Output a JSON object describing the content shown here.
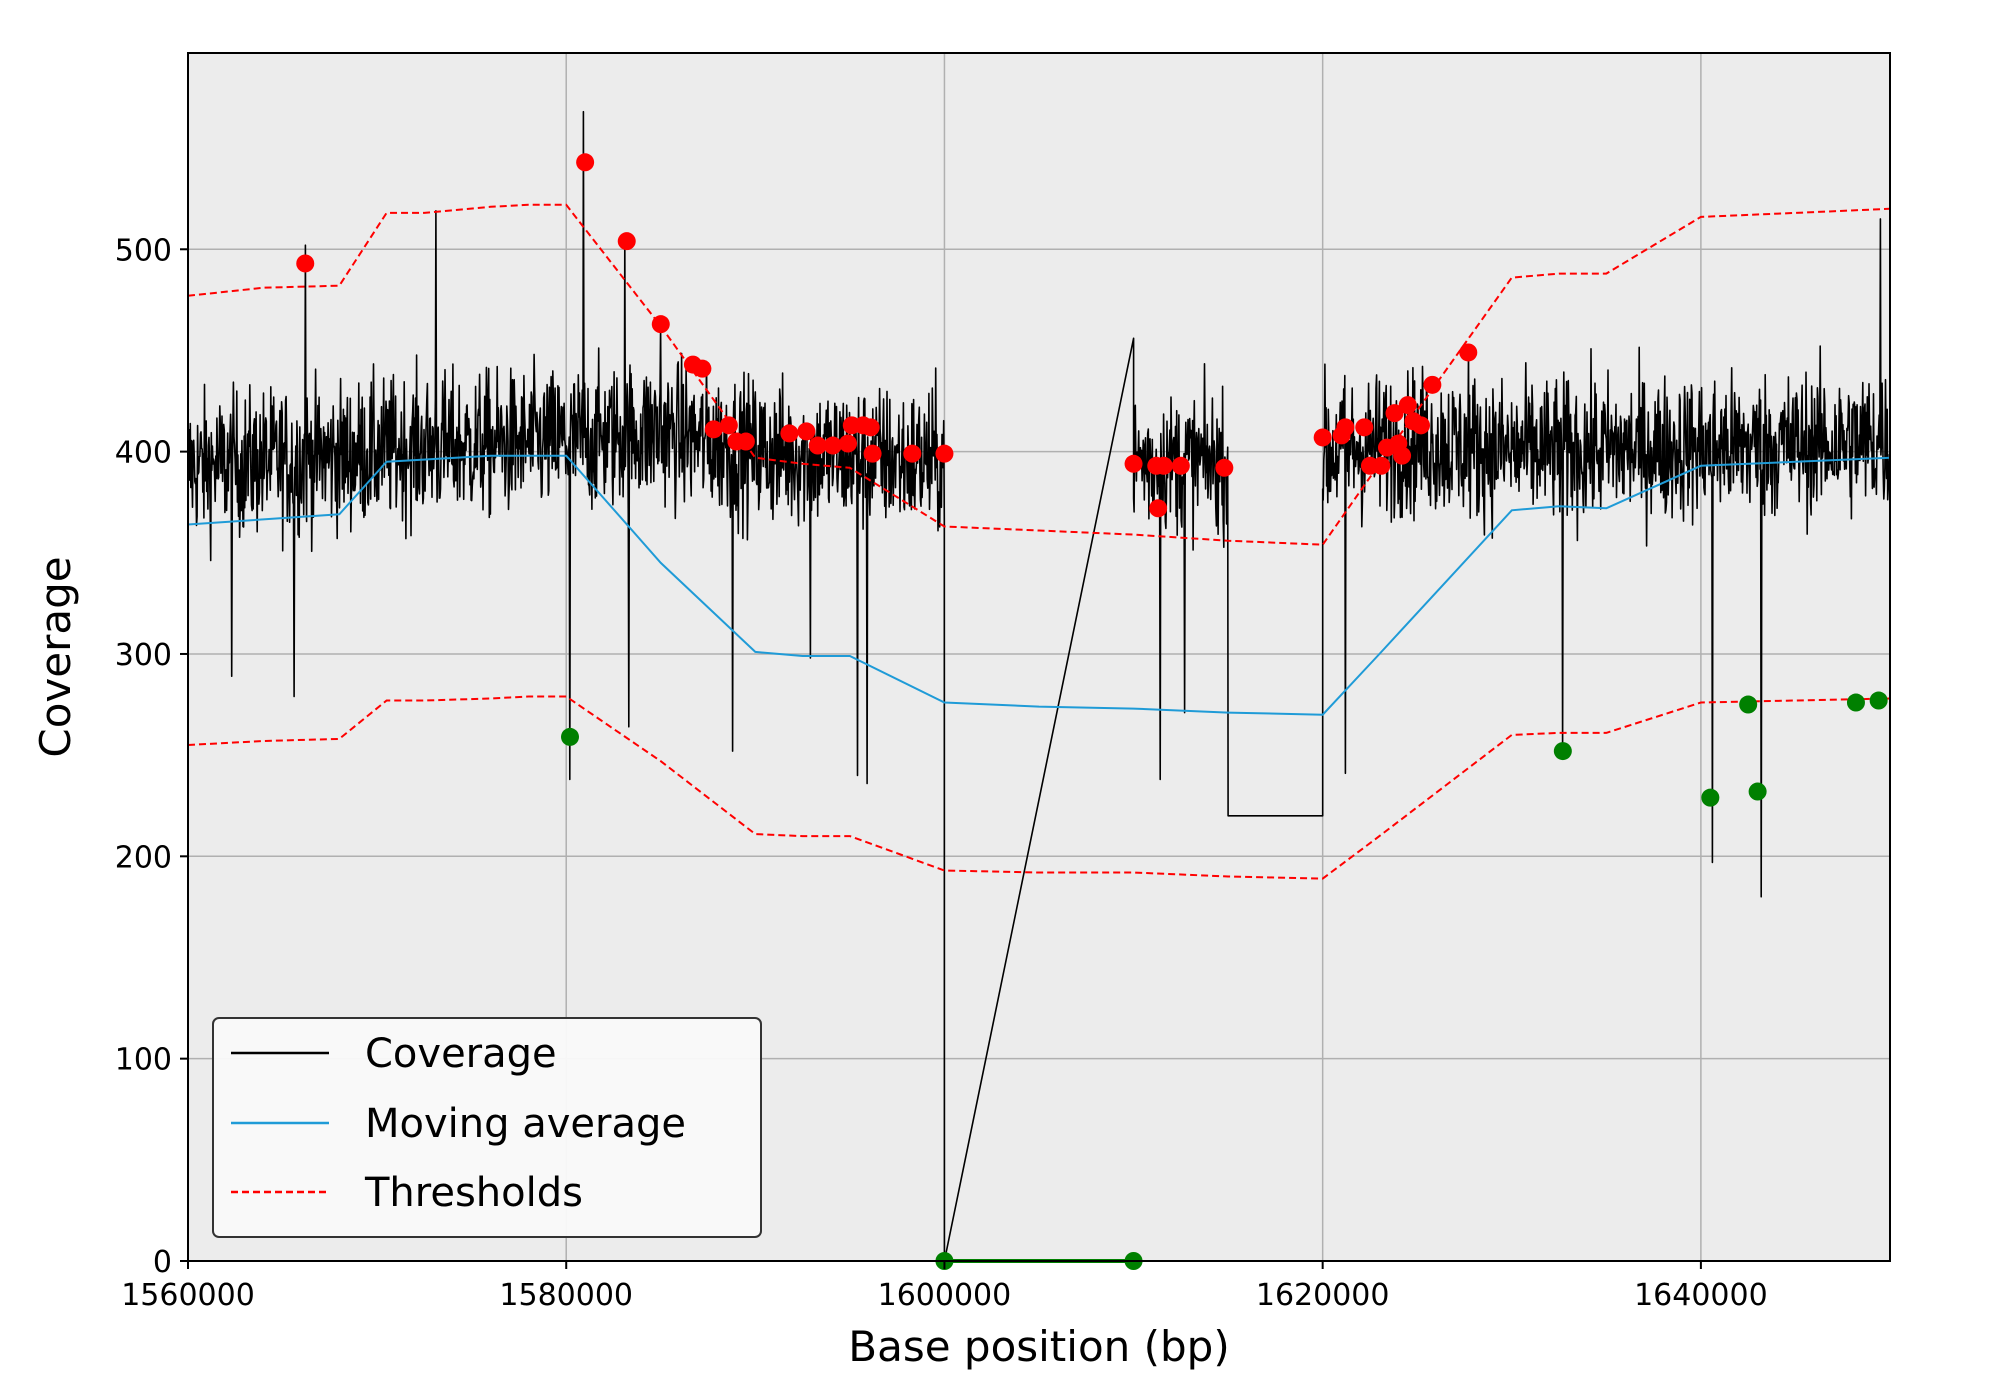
{
  "chart_data": {
    "type": "line",
    "title": "",
    "xlabel": "Base position (bp)",
    "ylabel": "Coverage",
    "xlim": [
      1560000,
      1650000
    ],
    "ylim": [
      0,
      597
    ],
    "x_ticks": [
      1560000,
      1580000,
      1600000,
      1620000,
      1640000
    ],
    "x_tick_labels": [
      "1560000",
      "1580000",
      "1600000",
      "1620000",
      "1640000"
    ],
    "y_ticks": [
      0,
      100,
      200,
      300,
      400,
      500
    ],
    "y_tick_labels": [
      "0",
      "100",
      "200",
      "300",
      "400",
      "500"
    ],
    "grid": true,
    "legend": {
      "position": "lower-left",
      "entries": [
        {
          "label": "Coverage",
          "color": "#000000",
          "style": "solid"
        },
        {
          "label": "Moving average",
          "color": "#1f9bd7",
          "style": "solid"
        },
        {
          "label": "Thresholds",
          "color": "#ff0000",
          "style": "dashed"
        }
      ]
    },
    "colors": {
      "background": "#ececec",
      "coverage": "#000000",
      "moving_average": "#1f9bd7",
      "threshold": "#ff0000",
      "high_outlier": "#ff0000",
      "low_outlier": "#008000"
    },
    "series": [
      {
        "name": "Moving average",
        "x": [
          1560000,
          1568000,
          1570500,
          1576000,
          1580000,
          1585000,
          1590000,
          1592500,
          1595000,
          1600000,
          1605000,
          1610000,
          1615000,
          1620000,
          1623000,
          1630000,
          1632500,
          1635000,
          1640000,
          1650000
        ],
        "y": [
          364,
          369,
          395,
          398,
          398,
          345,
          301,
          299,
          299,
          276,
          274,
          273,
          271,
          270,
          300,
          371,
          373,
          372,
          393,
          397
        ]
      },
      {
        "name": "Thresholds",
        "x": [
          1560000,
          1564000,
          1568000,
          1570500,
          1572500,
          1576000,
          1578000,
          1580000,
          1585000,
          1590000,
          1592500,
          1595000,
          1600000,
          1605000,
          1610000,
          1615000,
          1620000,
          1623000,
          1630000,
          1632500,
          1635000,
          1640000,
          1645000,
          1650000
        ],
        "y": [
          477,
          481,
          482,
          518,
          518,
          521,
          522,
          522,
          462,
          397,
          394,
          392,
          363,
          361,
          359,
          356,
          354,
          394,
          486,
          488,
          488,
          516,
          518,
          520
        ]
      },
      {
        "name": "Thresholds",
        "x": [
          1560000,
          1564000,
          1568000,
          1570500,
          1572500,
          1576000,
          1578000,
          1580000,
          1585000,
          1590000,
          1592500,
          1595000,
          1600000,
          1605000,
          1610000,
          1615000,
          1620000,
          1623000,
          1630000,
          1632500,
          1635000,
          1640000,
          1645000,
          1650000
        ],
        "y": [
          255,
          257,
          258,
          277,
          277,
          278,
          279,
          279,
          247,
          211,
          210,
          210,
          193,
          192,
          192,
          190,
          189,
          210,
          260,
          261,
          261,
          276,
          277,
          278
        ]
      }
    ],
    "coverage_segments": [
      {
        "x_range": [
          1560000,
          1600000
        ],
        "baseline": [
          [
            1560000,
            392
          ],
          [
            1568000,
            398
          ],
          [
            1572000,
            402
          ],
          [
            1580000,
            405
          ],
          [
            1585000,
            410
          ],
          [
            1590000,
            400
          ],
          [
            1600000,
            395
          ]
        ],
        "spread": 30
      },
      {
        "x_range": [
          1600000,
          1610000
        ],
        "constant": 0
      },
      {
        "x_range": [
          1610000,
          1615000
        ],
        "baseline": [
          [
            1610000,
            395
          ],
          [
            1615000,
            395
          ]
        ],
        "spread": 28
      },
      {
        "x_range": [
          1615000,
          1620000
        ],
        "constant": 220
      },
      {
        "x_range": [
          1620000,
          1650000
        ],
        "baseline": [
          [
            1620000,
            400
          ],
          [
            1625000,
            405
          ],
          [
            1630000,
            400
          ],
          [
            1640000,
            402
          ],
          [
            1650000,
            405
          ]
        ],
        "spread": 30
      }
    ],
    "coverage_spikes": [
      {
        "x": 1566200,
        "y": 502
      },
      {
        "x": 1565600,
        "y": 279
      },
      {
        "x": 1562300,
        "y": 289
      },
      {
        "x": 1573100,
        "y": 519
      },
      {
        "x": 1580200,
        "y": 238
      },
      {
        "x": 1580900,
        "y": 568
      },
      {
        "x": 1583100,
        "y": 506
      },
      {
        "x": 1583300,
        "y": 264
      },
      {
        "x": 1585000,
        "y": 462
      },
      {
        "x": 1588800,
        "y": 252
      },
      {
        "x": 1592900,
        "y": 298
      },
      {
        "x": 1595400,
        "y": 240
      },
      {
        "x": 1595900,
        "y": 236
      },
      {
        "x": 1610000,
        "y": 456
      },
      {
        "x": 1611400,
        "y": 238
      },
      {
        "x": 1612700,
        "y": 271
      },
      {
        "x": 1621200,
        "y": 241
      },
      {
        "x": 1632700,
        "y": 253
      },
      {
        "x": 1640600,
        "y": 197
      },
      {
        "x": 1643200,
        "y": 180
      },
      {
        "x": 1649500,
        "y": 515
      },
      {
        "x": 1627700,
        "y": 450
      }
    ],
    "high_outliers": [
      {
        "x": 1566200,
        "y": 493
      },
      {
        "x": 1581000,
        "y": 543
      },
      {
        "x": 1583200,
        "y": 504
      },
      {
        "x": 1585000,
        "y": 463
      },
      {
        "x": 1586700,
        "y": 443
      },
      {
        "x": 1587200,
        "y": 441
      },
      {
        "x": 1587800,
        "y": 411
      },
      {
        "x": 1588600,
        "y": 413
      },
      {
        "x": 1589000,
        "y": 405
      },
      {
        "x": 1589500,
        "y": 405
      },
      {
        "x": 1591800,
        "y": 409
      },
      {
        "x": 1592700,
        "y": 410
      },
      {
        "x": 1593300,
        "y": 403
      },
      {
        "x": 1594100,
        "y": 403
      },
      {
        "x": 1594900,
        "y": 404
      },
      {
        "x": 1595100,
        "y": 413
      },
      {
        "x": 1595700,
        "y": 413
      },
      {
        "x": 1596100,
        "y": 412
      },
      {
        "x": 1596200,
        "y": 399
      },
      {
        "x": 1598300,
        "y": 399
      },
      {
        "x": 1600000,
        "y": 399
      },
      {
        "x": 1610000,
        "y": 394
      },
      {
        "x": 1611200,
        "y": 393
      },
      {
        "x": 1611300,
        "y": 372
      },
      {
        "x": 1611600,
        "y": 393
      },
      {
        "x": 1612500,
        "y": 393
      },
      {
        "x": 1614800,
        "y": 392
      },
      {
        "x": 1620000,
        "y": 407
      },
      {
        "x": 1621000,
        "y": 408
      },
      {
        "x": 1621200,
        "y": 412
      },
      {
        "x": 1622200,
        "y": 412
      },
      {
        "x": 1622500,
        "y": 393
      },
      {
        "x": 1623100,
        "y": 393
      },
      {
        "x": 1623400,
        "y": 402
      },
      {
        "x": 1623800,
        "y": 419
      },
      {
        "x": 1624000,
        "y": 404
      },
      {
        "x": 1624200,
        "y": 398
      },
      {
        "x": 1624500,
        "y": 423
      },
      {
        "x": 1624800,
        "y": 415
      },
      {
        "x": 1625200,
        "y": 413
      },
      {
        "x": 1625800,
        "y": 433
      },
      {
        "x": 1627700,
        "y": 449
      }
    ],
    "low_outliers": [
      {
        "x": 1580200,
        "y": 259
      },
      {
        "x": 1600000,
        "y": 0
      },
      {
        "x": 1610000,
        "y": 0
      },
      {
        "x": 1632700,
        "y": 252
      },
      {
        "x": 1640500,
        "y": 229
      },
      {
        "x": 1642500,
        "y": 275
      },
      {
        "x": 1643000,
        "y": 232
      },
      {
        "x": 1648200,
        "y": 276
      },
      {
        "x": 1649400,
        "y": 277
      }
    ]
  }
}
